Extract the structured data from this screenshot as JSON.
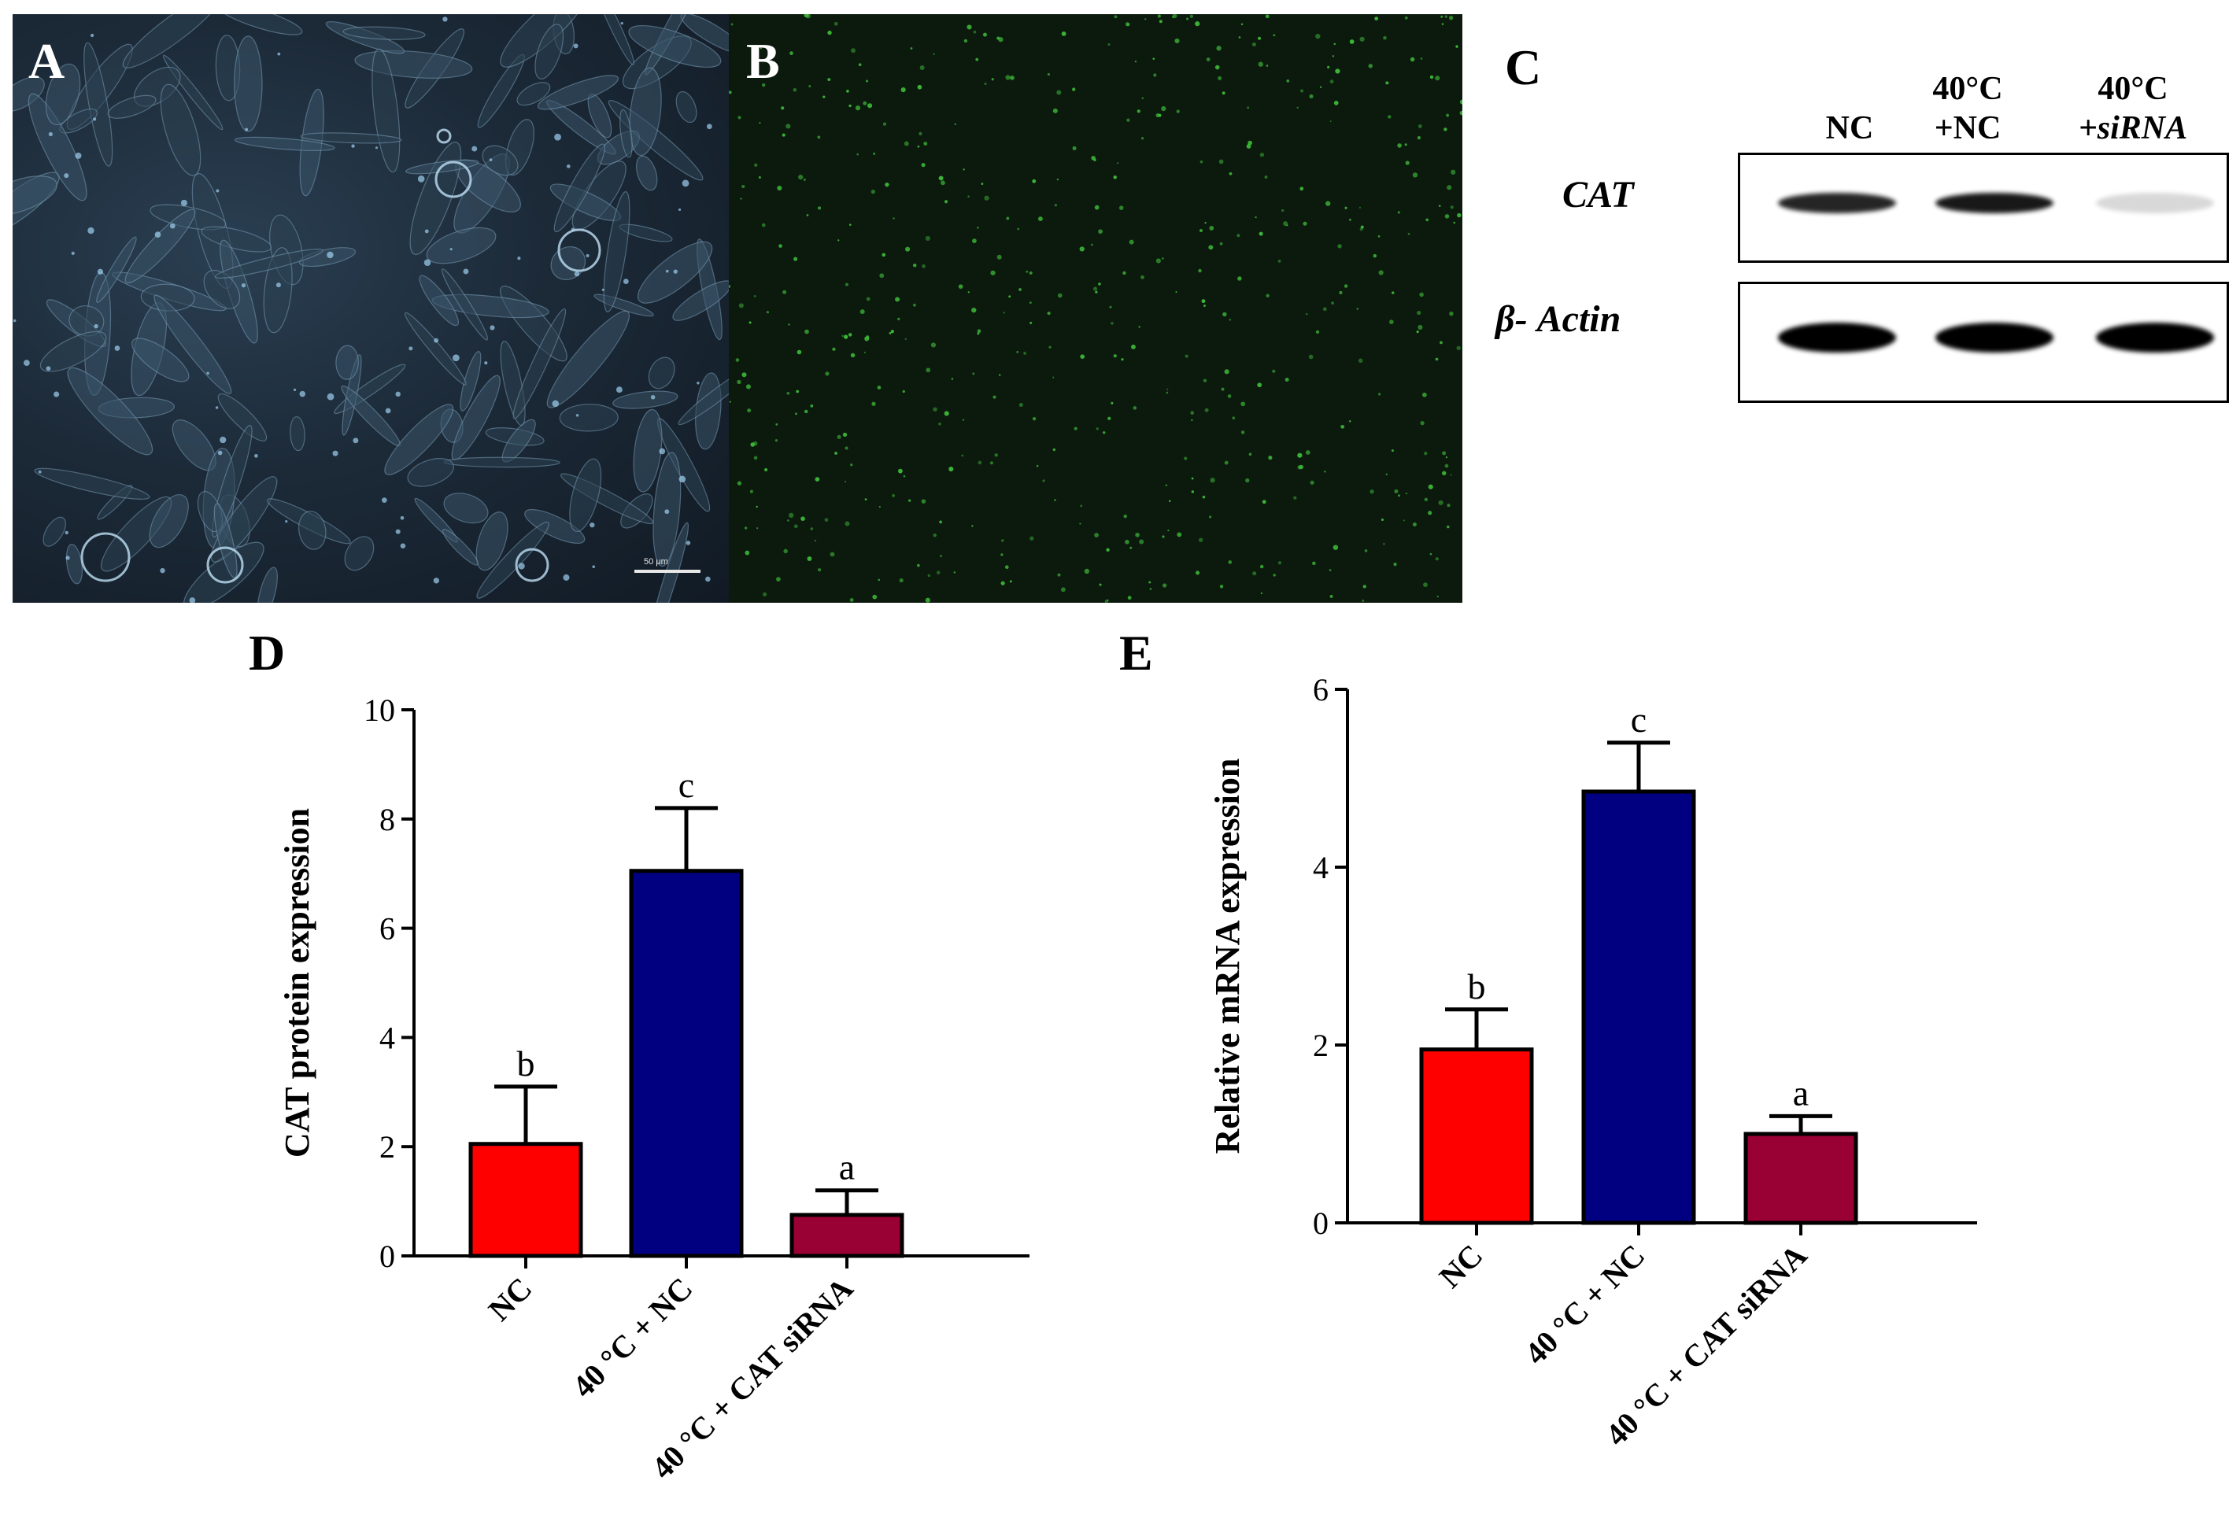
{
  "panels": {
    "a_label": "A",
    "b_label": "B",
    "c_label": "C",
    "d_label": "D",
    "e_label": "E",
    "scale_bar_label": "50 μm"
  },
  "western_blot": {
    "lanes": [
      {
        "line1": "",
        "line2": "NC"
      },
      {
        "line1": "40°C",
        "line2": "+NC"
      },
      {
        "line1": "40°C",
        "line2": "+siRNA"
      }
    ],
    "rows": [
      {
        "label": "CAT",
        "intensities": [
          0.85,
          0.9,
          0.15
        ]
      },
      {
        "label": "β- Actin",
        "intensities": [
          1.0,
          1.0,
          1.0
        ]
      }
    ]
  },
  "colors": {
    "nc": "#ff0000",
    "heat_nc": "#000080",
    "heat_sirna": "#990033",
    "fluorescence": "#3fbf3a"
  },
  "chart_data": [
    {
      "type": "bar",
      "panel": "D",
      "categories": [
        "NC",
        "40 °C + NC",
        "40 °C + CAT siRNA"
      ],
      "values": [
        2.05,
        7.05,
        0.75
      ],
      "errors": [
        1.05,
        1.15,
        0.45
      ],
      "significance": [
        "b",
        "c",
        "a"
      ],
      "xlabel": "",
      "ylabel": "CAT protein expression",
      "ylim": [
        0,
        10
      ],
      "yticks": [
        "0",
        "2",
        "4",
        "6",
        "8",
        "10"
      ],
      "grid": false
    },
    {
      "type": "bar",
      "panel": "E",
      "categories": [
        "NC",
        "40 °C + NC",
        "40 °C + CAT siRNA"
      ],
      "values": [
        1.95,
        4.85,
        1.0
      ],
      "errors": [
        0.45,
        0.55,
        0.2
      ],
      "significance": [
        "b",
        "c",
        "a"
      ],
      "xlabel": "",
      "ylabel": "Relative mRNA expression",
      "ylim": [
        0,
        6
      ],
      "yticks": [
        "0",
        "2",
        "4",
        "6"
      ],
      "grid": false
    }
  ]
}
